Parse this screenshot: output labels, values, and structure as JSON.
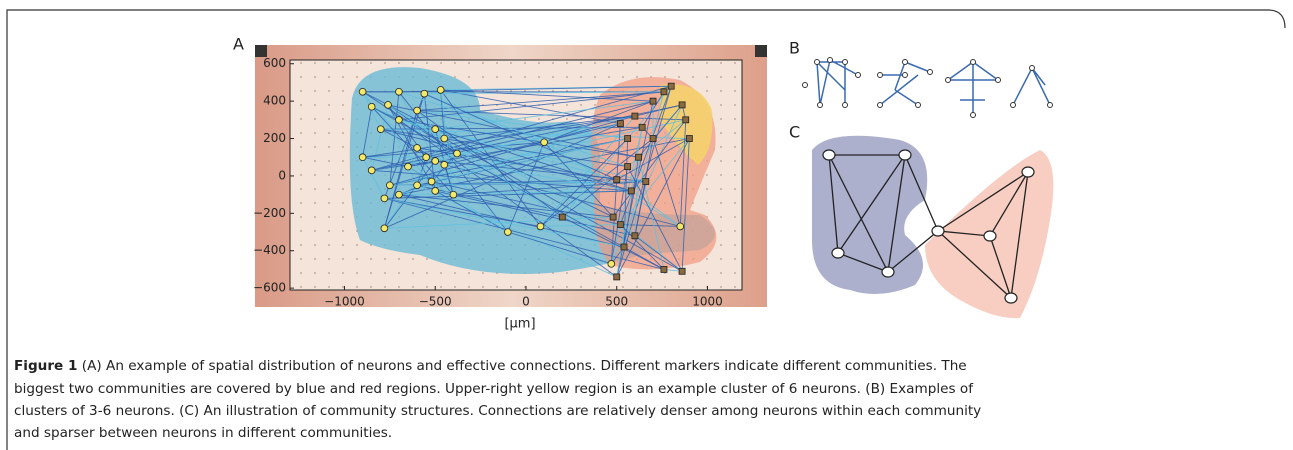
{
  "figure": {
    "panel_labels": [
      "A",
      "B",
      "C"
    ],
    "caption": {
      "label": "Figure 1",
      "lines": [
        "(A) An example of spatial distribution of neurons and effective connections. Different markers indicate different communities. The",
        "biggest two communities are covered by blue and red regions. Upper-right yellow region is an example cluster of 6 neurons. (B) Examples of",
        "clusters of 3-6 neurons. (C) An illustration of community structures. Connections are relatively denser among neurons within each community",
        "and sparser between neurons in different communities."
      ]
    }
  },
  "chart_data": {
    "type": "scatter",
    "xlabel": "[μm]",
    "xlim": [
      -1300,
      1190
    ],
    "ylim": [
      -610,
      620
    ],
    "xticks": [
      {
        "value": -1000,
        "label": "−1000"
      },
      {
        "value": -500,
        "label": "−500"
      },
      0,
      500,
      1000
    ],
    "yticks": [
      {
        "value": -600,
        "label": "−600"
      },
      {
        "value": -400,
        "label": "−400"
      },
      {
        "value": -200,
        "label": "−200"
      },
      0,
      200,
      400,
      600
    ],
    "series": [
      {
        "color": "#f2e86a",
        "marker": "circle",
        "x": [
          -900,
          -850,
          -760,
          -700,
          -560,
          -470,
          -600,
          -800,
          -700,
          -500,
          -450,
          -380,
          -600,
          -550,
          -500,
          -450,
          -900,
          -850,
          -750,
          -700,
          -600,
          -500,
          -400,
          -780,
          -520,
          -650,
          -100,
          100,
          80,
          470,
          850,
          -780
        ],
        "y": [
          450,
          370,
          380,
          450,
          440,
          460,
          350,
          250,
          300,
          250,
          200,
          120,
          150,
          100,
          80,
          60,
          100,
          30,
          -50,
          -100,
          -50,
          -80,
          -100,
          -280,
          -30,
          50,
          -300,
          180,
          -270,
          -470,
          -270,
          -120
        ]
      },
      {
        "color": "#8a6a40",
        "marker": "square",
        "x": [
          800,
          760,
          700,
          600,
          520,
          560,
          640,
          700,
          860,
          880,
          900,
          620,
          560,
          500,
          580,
          660,
          480,
          520,
          540,
          500,
          600,
          860,
          760,
          200
        ],
        "y": [
          480,
          450,
          400,
          320,
          280,
          200,
          260,
          200,
          380,
          300,
          200,
          100,
          50,
          -20,
          -80,
          -30,
          -220,
          -260,
          -380,
          -540,
          -320,
          -510,
          -500,
          -220
        ]
      }
    ]
  }
}
